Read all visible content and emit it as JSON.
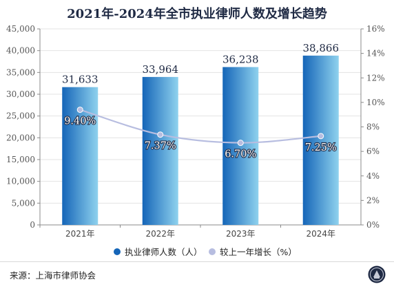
{
  "title": "2021年-2024年全市执业律师人数及增长趋势",
  "source": "来源：上海市律师协会",
  "colors": {
    "bar_dark": "#1565b8",
    "bar_light": "#8fd2ee",
    "line": "#b7bde0",
    "axis": "#666666"
  },
  "chart_data": {
    "type": "bar",
    "title": "2021年-2024年全市执业律师人数及增长趋势",
    "categories": [
      "2021年",
      "2022年",
      "2023年",
      "2024年"
    ],
    "series": [
      {
        "name": "执业律师人数（人）",
        "type": "bar",
        "axis": "left",
        "values": [
          31633,
          33964,
          36238,
          38866
        ],
        "labels": [
          "31,633",
          "33,964",
          "36,238",
          "38,866"
        ]
      },
      {
        "name": "较上一年增长（%）",
        "type": "line",
        "axis": "right",
        "values": [
          9.4,
          7.37,
          6.7,
          7.25
        ],
        "labels": [
          "9.40%",
          "7.37%",
          "6.70%",
          "7.25%"
        ]
      }
    ],
    "y_left": {
      "min": 0,
      "max": 45000,
      "step": 5000,
      "ticks": [
        "0",
        "5,000",
        "10,000",
        "15,000",
        "20,000",
        "25,000",
        "30,000",
        "35,000",
        "40,000",
        "45,000"
      ]
    },
    "y_right": {
      "min": 0,
      "max": 16,
      "step": 2,
      "ticks": [
        "0%",
        "2%",
        "4%",
        "6%",
        "8%",
        "10%",
        "12%",
        "14%",
        "16%"
      ]
    },
    "grid": true,
    "legend_position": "bottom"
  }
}
